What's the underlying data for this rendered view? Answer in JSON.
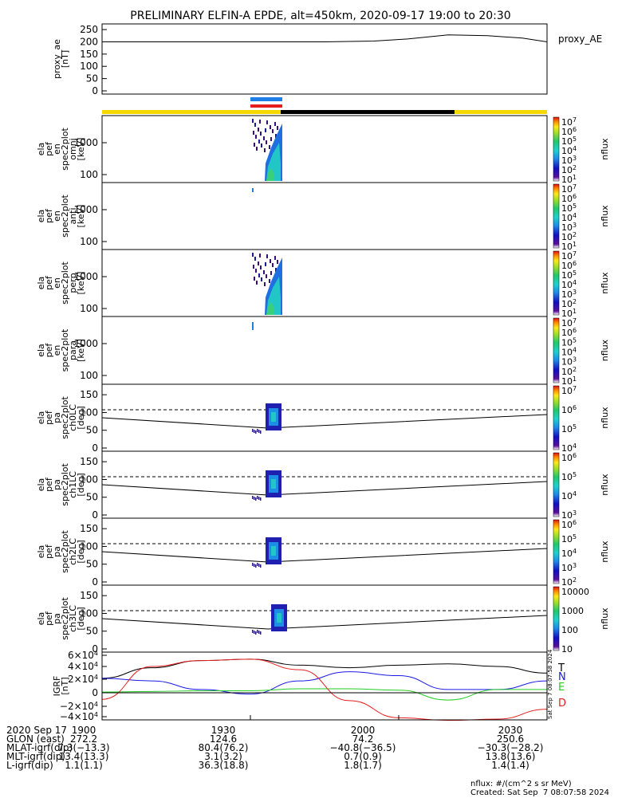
{
  "title": "PRELIMINARY ELFIN-A EPDE, alt=450km, 2020-09-17 19:00 to 20:30",
  "time_range": {
    "start": "19:00",
    "end": "20:30"
  },
  "colors": {
    "state_bar_day": "#f5d800",
    "state_bar_night": "#000000",
    "science_zone_blue": "#1e7fe6",
    "science_zone_red": "#e61e1e",
    "grf_T": "#000000",
    "grf_N": "#1a1ae6",
    "grf_E": "#22cc22",
    "grf_D": "#e61e1e"
  },
  "panels": [
    {
      "id": "ae",
      "ylabel": [
        "proxy_ae",
        "[nT]"
      ],
      "ylim": [
        0,
        260
      ],
      "ticks": [
        "250",
        "200",
        "150",
        "100",
        "50",
        "0"
      ],
      "legend": "proxy_AE"
    },
    {
      "id": "omni",
      "ylabel": [
        "ela",
        "pef",
        "en",
        "spec2plot",
        "omni",
        "[keV]"
      ],
      "ticks": [
        "1000",
        "100"
      ],
      "cbar_ticks": [
        "10^7",
        "10^6",
        "10^5",
        "10^4",
        "10^3",
        "10^2",
        "10^1"
      ],
      "cbar_label": "nflux"
    },
    {
      "id": "anti",
      "ylabel": [
        "ela",
        "pef",
        "en",
        "spec2plot",
        "anti",
        "[keV]"
      ],
      "ticks": [
        "1000",
        "100"
      ],
      "cbar_ticks": [
        "10^7",
        "10^6",
        "10^5",
        "10^4",
        "10^3",
        "10^2",
        "10^1"
      ],
      "cbar_label": "nflux"
    },
    {
      "id": "perp",
      "ylabel": [
        "ela",
        "pef",
        "en",
        "spec2plot",
        "perp",
        "[keV]"
      ],
      "ticks": [
        "1000",
        "100"
      ],
      "cbar_ticks": [
        "10^7",
        "10^6",
        "10^5",
        "10^4",
        "10^3",
        "10^2",
        "10^1"
      ],
      "cbar_label": "nflux"
    },
    {
      "id": "para",
      "ylabel": [
        "ela",
        "pef",
        "en",
        "spec2plot",
        "para",
        "[keV]"
      ],
      "ticks": [
        "1000",
        "100"
      ],
      "cbar_ticks": [
        "10^7",
        "10^6",
        "10^5",
        "10^4",
        "10^3",
        "10^2",
        "10^1"
      ],
      "cbar_label": "nflux"
    },
    {
      "id": "ch0",
      "ylabel": [
        "ela",
        "pef",
        "pa",
        "spec2plot",
        "ch0LC",
        "[deg]"
      ],
      "ticks": [
        "150",
        "100",
        "50",
        "0"
      ],
      "cbar_ticks": [
        "10^7",
        "10^6",
        "10^5",
        "10^4"
      ],
      "cbar_label": "nflux"
    },
    {
      "id": "ch1",
      "ylabel": [
        "ela",
        "pef",
        "pa",
        "spec2plot",
        "ch1LC",
        "[deg]"
      ],
      "ticks": [
        "150",
        "100",
        "50",
        "0"
      ],
      "cbar_ticks": [
        "10^6",
        "10^5",
        "10^4",
        "10^3"
      ],
      "cbar_label": "nflux"
    },
    {
      "id": "ch2",
      "ylabel": [
        "ela",
        "pef",
        "pa",
        "spec2plot",
        "ch2LC",
        "[deg]"
      ],
      "ticks": [
        "150",
        "100",
        "50",
        "0"
      ],
      "cbar_ticks": [
        "10^6",
        "10^5",
        "10^4",
        "10^3",
        "10^2"
      ],
      "cbar_label": "nflux"
    },
    {
      "id": "ch3",
      "ylabel": [
        "ela",
        "pef",
        "pa",
        "spec2plot",
        "ch3LC",
        "[deg]"
      ],
      "ticks": [
        "150",
        "100",
        "50",
        "0"
      ],
      "cbar_ticks": [
        "10000",
        "1000",
        "100",
        "10"
      ],
      "cbar_label": "nflux"
    },
    {
      "id": "igrf",
      "ylabel": [
        "IGRF",
        "[nT]"
      ],
      "ticks": [
        "6×10^4",
        "4×10^4",
        "2×10^4",
        "0",
        "−2×10^4",
        "−4×10^4"
      ],
      "legend": [
        "T",
        "N",
        "E",
        "D"
      ]
    }
  ],
  "chart_data": {
    "type": "line",
    "title": "PRELIMINARY ELFIN-A EPDE, alt=450km, 2020-09-17 19:00 to 20:30",
    "x_ticks": [
      "1900",
      "1930",
      "2000",
      "2030"
    ],
    "proxy_AE": {
      "x_min": [
        0,
        15,
        30,
        45,
        55,
        62,
        70,
        78,
        85,
        90
      ],
      "y_nT": [
        200,
        200,
        200,
        200,
        203,
        212,
        228,
        225,
        215,
        200
      ]
    },
    "igrf_nT": {
      "x_min": [
        0,
        10,
        20,
        30,
        40,
        50,
        60,
        70,
        80,
        90
      ],
      "T": [
        22000,
        38000,
        49000,
        51000,
        42000,
        38000,
        42000,
        44000,
        40000,
        30000
      ],
      "N": [
        22000,
        18000,
        5000,
        -2000,
        18000,
        32000,
        26000,
        5000,
        5000,
        18000
      ],
      "E": [
        1000,
        2000,
        3000,
        3000,
        6000,
        6000,
        4000,
        -11000,
        5000,
        5000
      ],
      "D": [
        -10000,
        40000,
        49000,
        51000,
        35000,
        -12000,
        -38000,
        -42000,
        -40000,
        -25000
      ]
    }
  },
  "footer": {
    "rows": [
      [
        "2020 Sep 17",
        "1900",
        "1930",
        "2000",
        "2030"
      ],
      [
        "GLON (east)",
        "272.2",
        "124.6",
        "74.2",
        "250.6"
      ],
      [
        "MLAT-igrf(dip)",
        "7.3(−13.3)",
        "80.4(76.2)",
        "−40.8(−36.5)",
        "−30.3(−28.2)"
      ],
      [
        "MLT-igrf(dip)",
        "13.4(13.3)",
        "3.1(3.2)",
        "0.7(0.9)",
        "13.8(13.6)"
      ],
      [
        "L-igrf(dip)",
        "1.1(1.1)",
        "36.3(18.8)",
        "1.8(1.7)",
        "1.4(1.4)"
      ]
    ],
    "units_note": "nflux: #/(cm^2 s sr MeV)",
    "created": "Created: Sat Sep  7 08:07:58 2024",
    "side_stamp": "Sat Sep  7 08:07:58 2024"
  }
}
